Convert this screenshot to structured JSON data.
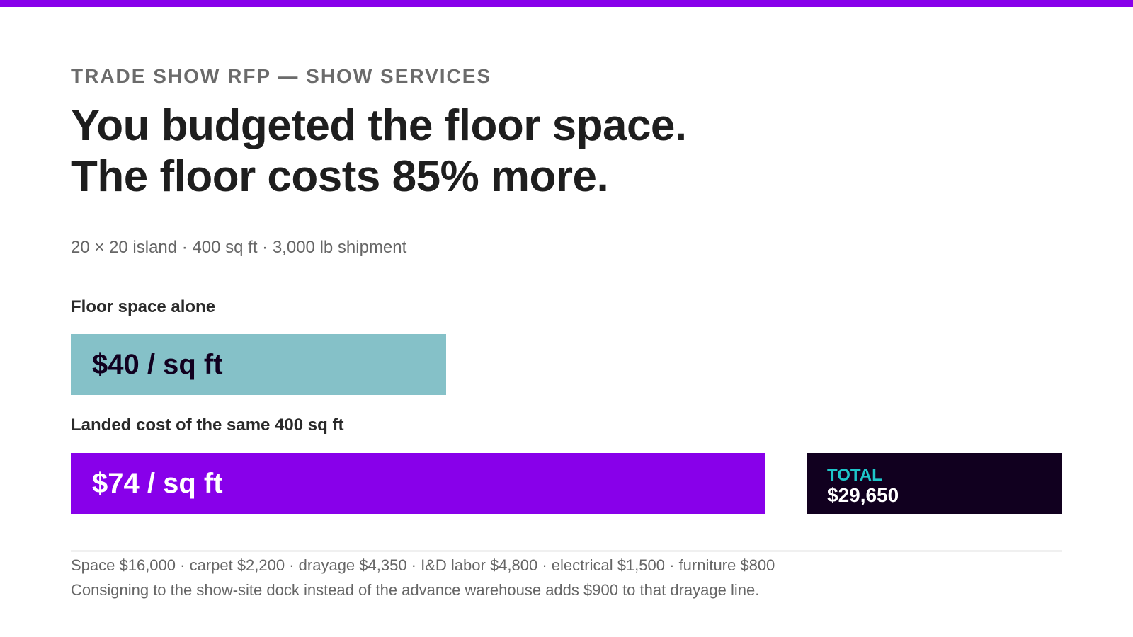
{
  "header": {
    "eyebrow": "TRADE SHOW RFP — SHOW SERVICES",
    "headline_line1": "You budgeted the floor space.",
    "headline_line2": "The floor costs 85% more.",
    "subtitle": "20 × 20 island · 400 sq ft · 3,000 lb shipment"
  },
  "colors": {
    "accent": "#8800ea",
    "floor_bar": "#85c1c8",
    "landed_bar": "#8800ea",
    "total_bg": "#11001f",
    "total_label": "#1ec6c9"
  },
  "chart_data": {
    "type": "bar",
    "orientation": "horizontal",
    "unit": "$ / sq ft",
    "categories": [
      "Floor space alone",
      "Landed cost of the same 400 sq ft"
    ],
    "values": [
      40,
      74
    ],
    "value_labels": [
      "$40 / sq ft",
      "$74 / sq ft"
    ],
    "total": {
      "label": "TOTAL",
      "value": "$29,650"
    }
  },
  "footer": {
    "breakdown": "Space $16,000 · carpet $2,200 · drayage $4,350 · I&D labor $4,800 · electrical $1,500 · furniture $800",
    "note": "Consigning to the show-site dock instead of the advance warehouse adds $900 to that drayage line."
  }
}
